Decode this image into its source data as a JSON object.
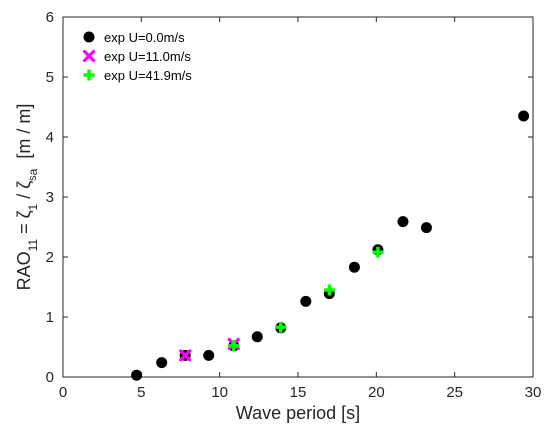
{
  "chart_data": {
    "type": "scatter",
    "xlabel": "Wave period [s]",
    "ylabel": "RAO₁₁ = ζ₁ / ζₐ  [m / m]",
    "ylabel_parts": {
      "base": "RAO",
      "base_sub": "11",
      "eq": " = ζ",
      "num_sub": "1",
      "slash": " / ζ",
      "den_sub_s": "s",
      "den_sub_a": "a",
      "unit": "  [m / m]"
    },
    "xlim": [
      0,
      30
    ],
    "ylim": [
      0,
      6
    ],
    "xticks": [
      0,
      5,
      10,
      15,
      20,
      25,
      30
    ],
    "yticks": [
      0,
      1,
      2,
      3,
      4,
      5,
      6
    ],
    "grid": false,
    "legend_position": "top-left",
    "series": [
      {
        "name": "exp U=0.0m/s",
        "marker": "circle",
        "color": "#000000",
        "x": [
          4.7,
          6.3,
          7.8,
          9.3,
          10.9,
          12.4,
          13.9,
          15.5,
          17.0,
          18.6,
          20.1,
          21.7,
          23.2,
          29.4
        ],
        "y": [
          0.03,
          0.24,
          0.36,
          0.36,
          0.52,
          0.67,
          0.82,
          1.26,
          1.39,
          1.83,
          2.12,
          2.59,
          2.49,
          4.35
        ]
      },
      {
        "name": "exp U=11.0m/s",
        "marker": "x",
        "color": "#ff00ff",
        "x": [
          7.8,
          10.9
        ],
        "y": [
          0.36,
          0.55
        ]
      },
      {
        "name": "exp U=41.9m/s",
        "marker": "plus",
        "color": "#00ff00",
        "x": [
          10.9,
          13.9,
          17.0,
          20.1
        ],
        "y": [
          0.52,
          0.83,
          1.45,
          2.08
        ]
      }
    ]
  }
}
